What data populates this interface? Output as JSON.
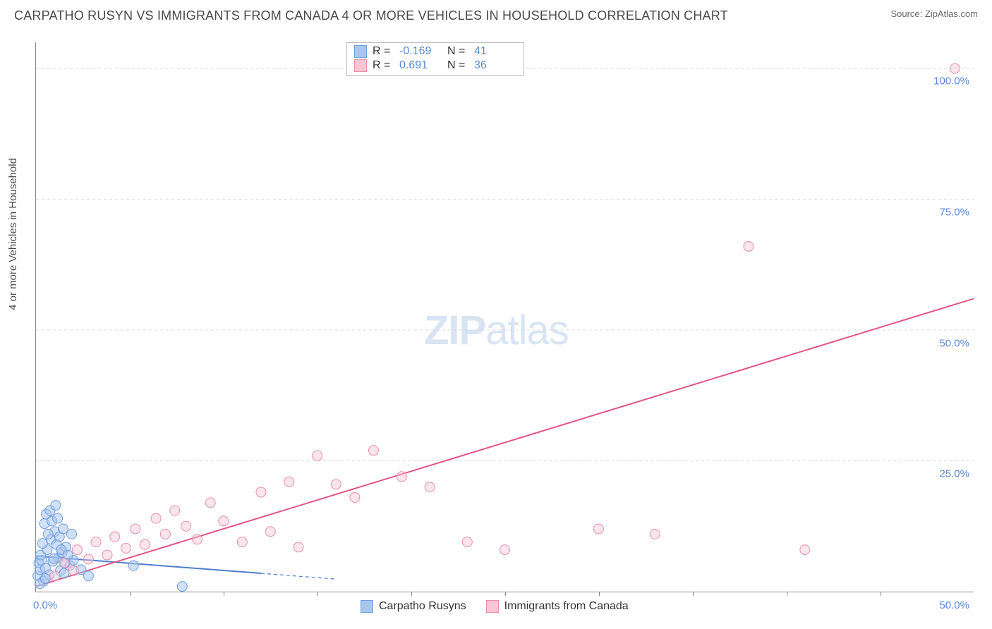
{
  "title": "CARPATHO RUSYN VS IMMIGRANTS FROM CANADA 4 OR MORE VEHICLES IN HOUSEHOLD CORRELATION CHART",
  "source": "Source: ZipAtlas.com",
  "ylabel": "4 or more Vehicles in Household",
  "watermark": {
    "bold": "ZIP",
    "rest": "atlas"
  },
  "xlim": [
    0,
    50
  ],
  "ylim": [
    0,
    105
  ],
  "x_ticks": [
    {
      "v": 0,
      "label": "0.0%"
    },
    {
      "v": 50,
      "label": "50.0%"
    }
  ],
  "x_minor_ticks": [
    5,
    10,
    15,
    20,
    25,
    30,
    35,
    40,
    45
  ],
  "y_ticks": [
    {
      "v": 25,
      "label": "25.0%"
    },
    {
      "v": 50,
      "label": "50.0%"
    },
    {
      "v": 75,
      "label": "75.0%"
    },
    {
      "v": 100,
      "label": "100.0%"
    }
  ],
  "series": [
    {
      "key": "blue",
      "name": "Carpatho Rusyns",
      "fill": "#a9c6ef",
      "stroke": "#6f9ede",
      "fill_opacity": 0.55,
      "R": "-0.169",
      "N": "41",
      "trend": {
        "x1": 0,
        "y1": 6.8,
        "x2": 12,
        "y2": 3.5,
        "solid_color": "#4f7ecf",
        "dash_to_x": 16
      },
      "points": [
        [
          0.1,
          3.0
        ],
        [
          0.2,
          4.2
        ],
        [
          0.15,
          5.5
        ],
        [
          0.3,
          6.0
        ],
        [
          0.4,
          2.0
        ],
        [
          0.25,
          7.0
        ],
        [
          0.5,
          4.5
        ],
        [
          0.6,
          8.0
        ],
        [
          0.7,
          3.2
        ],
        [
          0.8,
          10.0
        ],
        [
          0.35,
          9.2
        ],
        [
          0.9,
          5.8
        ],
        [
          1.0,
          11.5
        ],
        [
          0.45,
          13.0
        ],
        [
          0.55,
          14.8
        ],
        [
          1.2,
          6.5
        ],
        [
          1.1,
          9.0
        ],
        [
          0.65,
          11.0
        ],
        [
          1.3,
          4.0
        ],
        [
          1.4,
          7.5
        ],
        [
          0.75,
          15.5
        ],
        [
          1.5,
          3.5
        ],
        [
          0.85,
          13.5
        ],
        [
          1.6,
          8.5
        ],
        [
          0.95,
          6.3
        ],
        [
          1.05,
          16.5
        ],
        [
          1.8,
          5.0
        ],
        [
          1.15,
          14.0
        ],
        [
          2.0,
          6.0
        ],
        [
          1.25,
          10.5
        ],
        [
          2.4,
          4.2
        ],
        [
          1.35,
          8.0
        ],
        [
          1.45,
          12.0
        ],
        [
          1.55,
          5.5
        ],
        [
          1.7,
          7.0
        ],
        [
          2.8,
          3.0
        ],
        [
          1.9,
          11.0
        ],
        [
          5.2,
          5.0
        ],
        [
          7.8,
          1.0
        ],
        [
          0.2,
          1.5
        ],
        [
          0.5,
          2.5
        ]
      ]
    },
    {
      "key": "pink",
      "name": "Immigrants from Canada",
      "fill": "#f6c6d4",
      "stroke": "#e98fab",
      "fill_opacity": 0.45,
      "R": "0.691",
      "N": "36",
      "trend": {
        "x1": 0,
        "y1": 1.0,
        "x2": 50,
        "y2": 56.0,
        "solid_color": "#e25584"
      },
      "points": [
        [
          1.5,
          5.5
        ],
        [
          2.2,
          8.0
        ],
        [
          2.8,
          6.2
        ],
        [
          3.2,
          9.5
        ],
        [
          3.8,
          7.0
        ],
        [
          4.2,
          10.5
        ],
        [
          4.8,
          8.3
        ],
        [
          5.3,
          12.0
        ],
        [
          5.8,
          9.0
        ],
        [
          6.4,
          14.0
        ],
        [
          6.9,
          11.0
        ],
        [
          7.4,
          15.5
        ],
        [
          8.0,
          12.5
        ],
        [
          8.6,
          10.0
        ],
        [
          9.3,
          17.0
        ],
        [
          10.0,
          13.5
        ],
        [
          11.0,
          9.5
        ],
        [
          12.0,
          19.0
        ],
        [
          12.5,
          11.5
        ],
        [
          13.5,
          21.0
        ],
        [
          14.0,
          8.5
        ],
        [
          15.0,
          26.0
        ],
        [
          16.0,
          20.5
        ],
        [
          17.0,
          18.0
        ],
        [
          18.0,
          27.0
        ],
        [
          19.5,
          22.0
        ],
        [
          21.0,
          20.0
        ],
        [
          23.0,
          9.5
        ],
        [
          25.0,
          8.0
        ],
        [
          30.0,
          12.0
        ],
        [
          33.0,
          11.0
        ],
        [
          38.0,
          66.0
        ],
        [
          41.0,
          8.0
        ],
        [
          49.0,
          100.0
        ],
        [
          2.0,
          4.0
        ],
        [
          1.0,
          3.0
        ]
      ]
    }
  ],
  "marker_radius": 7,
  "grid_color": "#d8d8d8",
  "background": "#ffffff",
  "label_color": "#5b89d6",
  "line_width": 2
}
